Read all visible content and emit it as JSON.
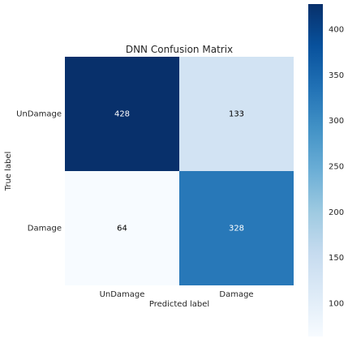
{
  "chart_data": {
    "type": "heatmap",
    "title": "DNN Confusion Matrix",
    "xlabel": "Predicted label",
    "ylabel": "True label",
    "x_categories": [
      "UnDamage",
      "Damage"
    ],
    "y_categories": [
      "UnDamage",
      "Damage"
    ],
    "values": [
      [
        428,
        133
      ],
      [
        64,
        328
      ]
    ],
    "colormap": "Blues",
    "color_range": [
      64,
      428
    ],
    "colorbar": {
      "ticks": [
        100,
        150,
        200,
        250,
        300,
        350,
        400
      ],
      "range": [
        64,
        428
      ]
    },
    "grid": false
  }
}
